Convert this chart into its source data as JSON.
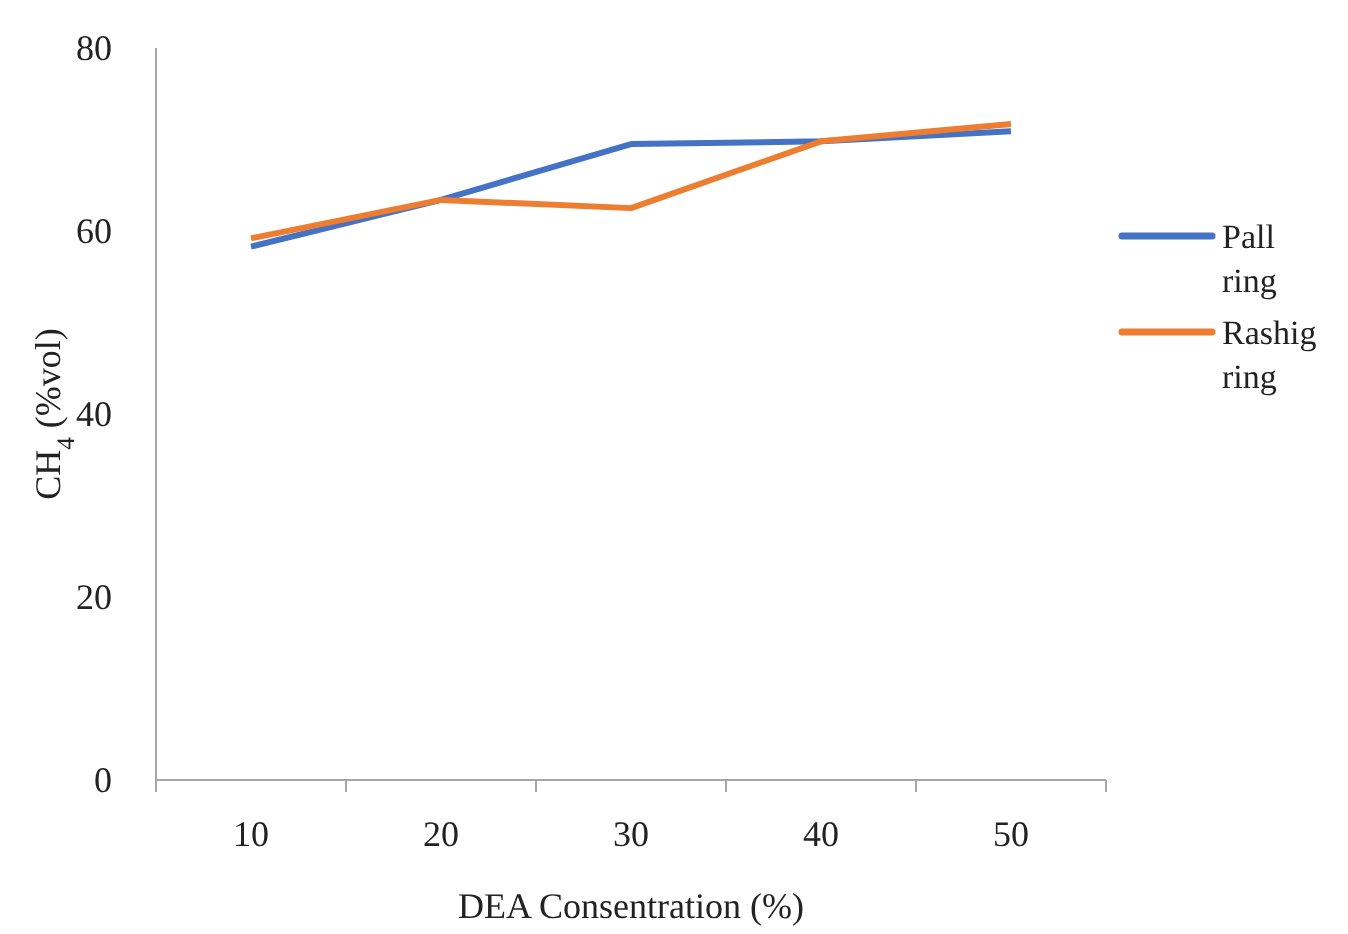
{
  "chart_data": {
    "type": "line",
    "xlabel": "DEA Consentration (%)",
    "ylabel": "CH$_{4}$ (%vol)",
    "categories": [
      "10",
      "20",
      "30",
      "40",
      "50"
    ],
    "series": [
      {
        "name": "Pall ring",
        "color": "#4472c4",
        "values": [
          58.3,
          63.4,
          69.5,
          69.8,
          70.9
        ]
      },
      {
        "name": "Rashig ring",
        "color": "#ed7d31",
        "values": [
          59.2,
          63.4,
          62.5,
          69.8,
          71.7
        ]
      }
    ],
    "ylim": [
      0,
      80
    ],
    "yticks": [
      0,
      20,
      40,
      60,
      80
    ],
    "grid": false,
    "legend": "right",
    "marker": "none",
    "line_style": "solid"
  }
}
